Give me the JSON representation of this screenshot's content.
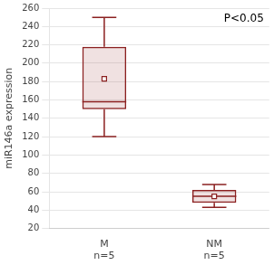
{
  "chart_data": {
    "type": "box",
    "categories": [
      "M",
      "NM"
    ],
    "category_sublabels": [
      "n=5",
      "n=5"
    ],
    "boxes": [
      {
        "whisker_low": 120,
        "q1": 150,
        "median": 158,
        "q3": 218,
        "whisker_high": 250,
        "mean": 183
      },
      {
        "whisker_low": 43,
        "q1": 48,
        "median": 55,
        "q3": 62,
        "whisker_high": 68,
        "mean": 55
      }
    ],
    "color": "#8B2020",
    "ylabel": "miR146a expression",
    "annotation": "P<0.05",
    "ylim": [
      20,
      260
    ],
    "yticks": [
      20,
      40,
      60,
      80,
      100,
      120,
      140,
      160,
      180,
      200,
      220,
      240,
      260
    ],
    "grid": true
  }
}
